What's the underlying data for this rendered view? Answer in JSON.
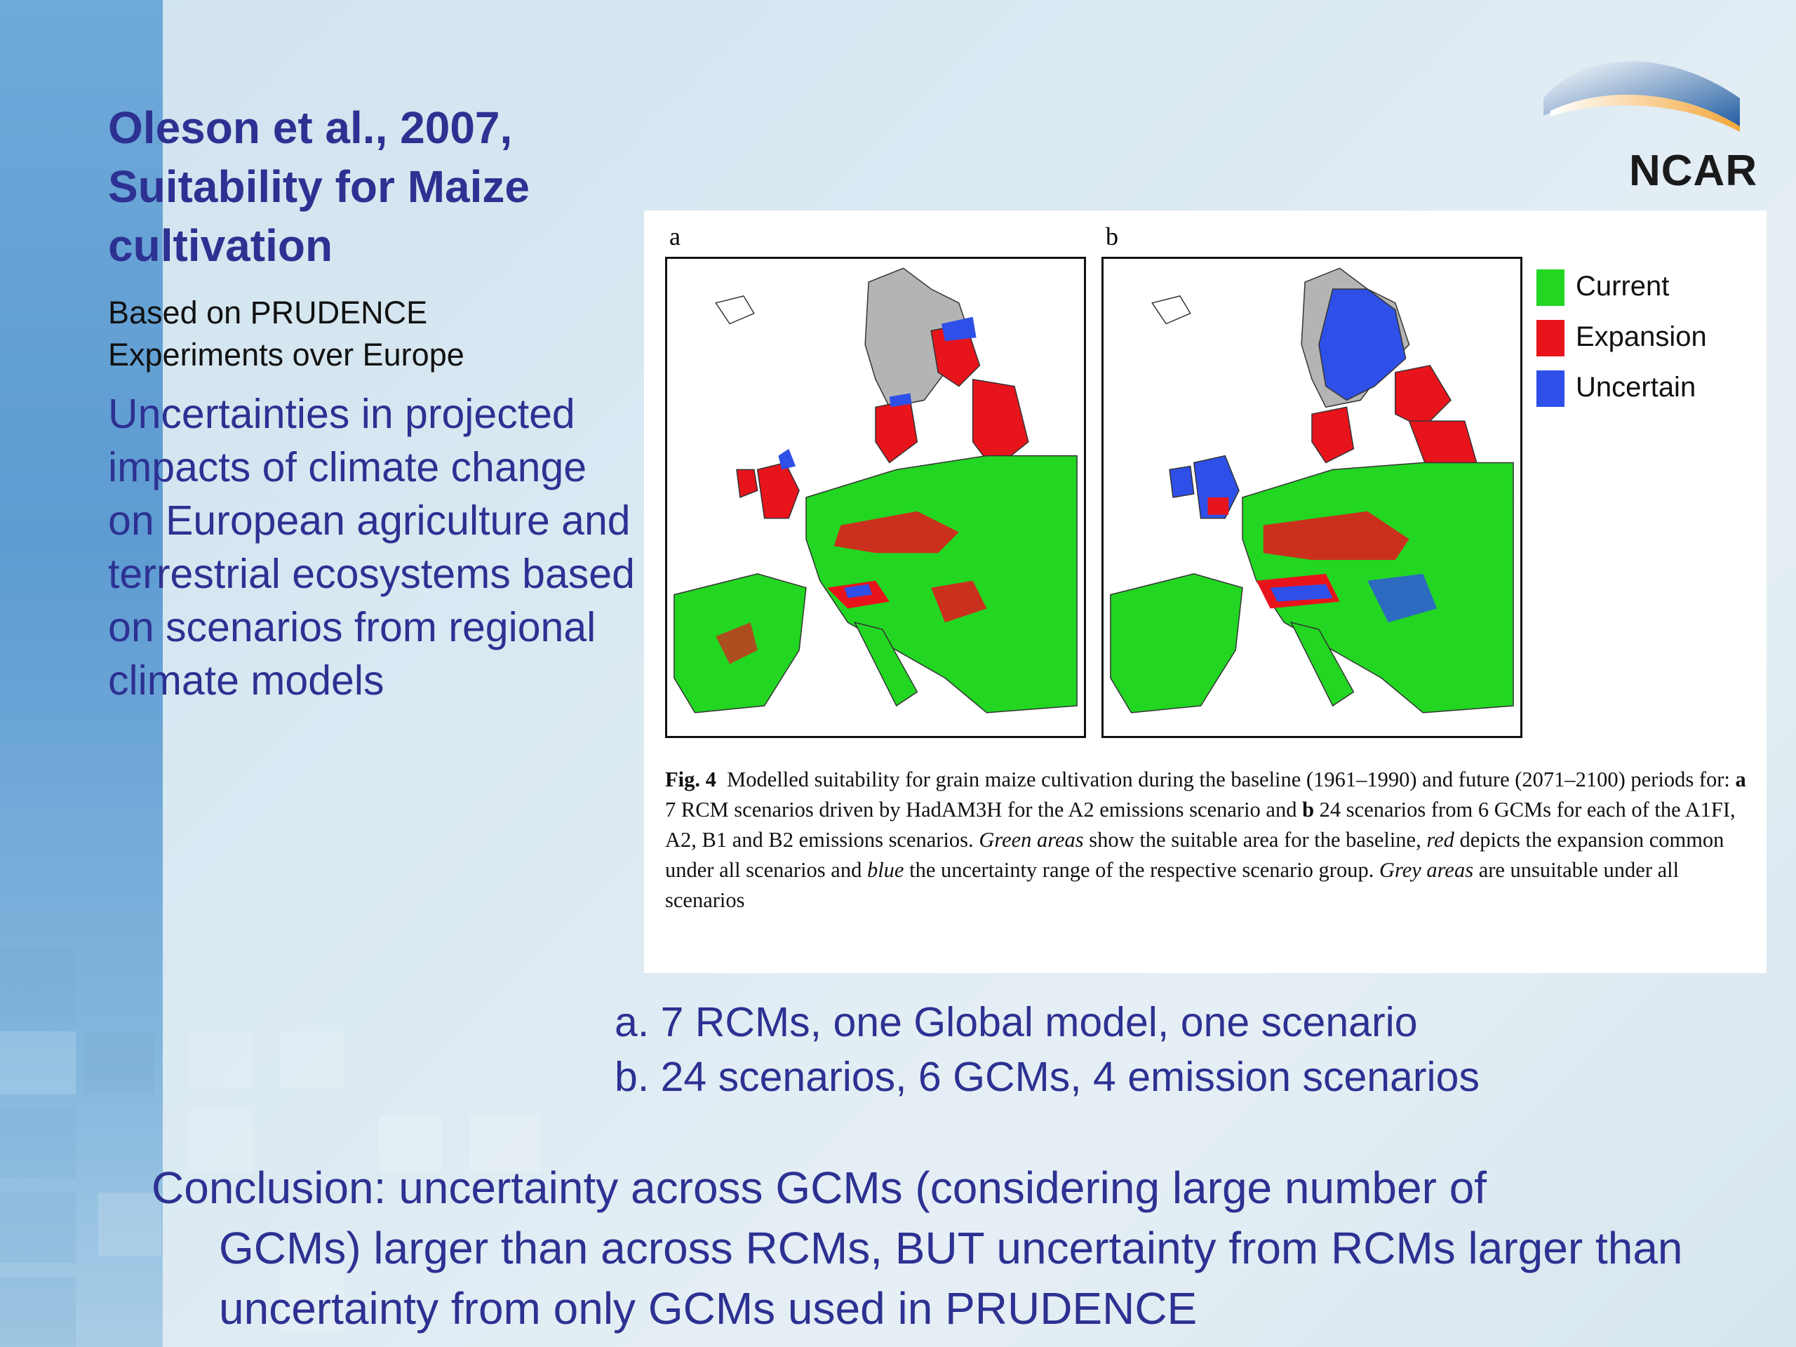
{
  "slide": {
    "title": "Oleson et al., 2007, Suitability for Maize cultivation",
    "subtitle": "Based on PRUDENCE Experiments  over Europe",
    "description": "Uncertainties in projected impacts of climate change on European agriculture and terrestrial ecosystems based on scenarios from regional climate models",
    "notes": [
      "a.  7 RCMs, one Global model, one scenario",
      "b. 24 scenarios, 6 GCMs, 4 emission scenarios"
    ],
    "conclusion_first": "Conclusion:  uncertainty across GCMs (considering large number of",
    "conclusion_rest": "GCMs) larger than across RCMs, BUT uncertainty from RCMs larger than uncertainty from only GCMs used in PRUDENCE"
  },
  "logo": {
    "text": "NCAR",
    "icon": "ncar-swoosh-icon"
  },
  "figure": {
    "panel_a_label": "a",
    "panel_b_label": "b",
    "legend": [
      {
        "label": "Current",
        "color": "#22d622"
      },
      {
        "label": "Expansion",
        "color": "#e8141c"
      },
      {
        "label": "Uncertain",
        "color": "#2f50e8"
      }
    ],
    "unsuitable_color": "#b4b4b4",
    "caption": {
      "fig_label": "Fig. 4",
      "p1": "Modelled suitability for grain maize cultivation during the baseline (1961–1990) and future (2071–2100) periods for: ",
      "a_bold": "a",
      "p2": " 7 RCM scenarios driven by HadAM3H for the A2 emissions scenario and ",
      "b_bold": "b",
      "p3": " 24 scenarios from 6 GCMs for each of the A1FI, A2, B1 and B2 emissions scenarios. ",
      "green_italic": "Green areas",
      "p4": " show the suitable area for the baseline, ",
      "red_italic": "red",
      "p5": " depicts the expansion common under all scenarios and ",
      "blue_italic": "blue",
      "p6": " the uncertainty range of the respective scenario group. ",
      "grey_italic": "Grey areas",
      "p7": " are unsuitable under all scenarios"
    }
  }
}
